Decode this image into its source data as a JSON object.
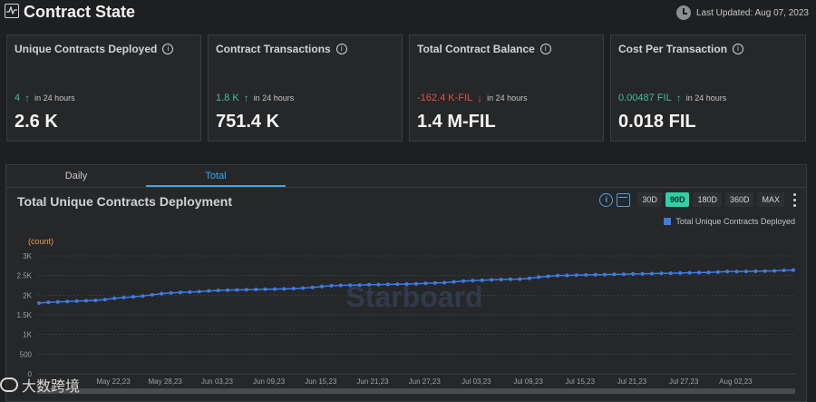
{
  "header": {
    "title": "Contract State",
    "last_updated": "Last Updated: Aug 07, 2023"
  },
  "cards": [
    {
      "label": "Unique Contracts Deployed",
      "delta": "4",
      "direction": "up",
      "note": "in 24 hours",
      "value": "2.6 K"
    },
    {
      "label": "Contract Transactions",
      "delta": "1.8 K",
      "direction": "up",
      "note": "in 24 hours",
      "value": "751.4 K"
    },
    {
      "label": "Total Contract Balance",
      "delta": "-162.4 K-FIL",
      "direction": "down",
      "note": "in 24 hours",
      "value": "1.4 M-FIL"
    },
    {
      "label": "Cost Per Transaction",
      "delta": "0.00487 FIL",
      "direction": "up",
      "note": "in 24 hours",
      "value": "0.018 FIL"
    }
  ],
  "tabs": [
    {
      "label": "Daily",
      "active": false
    },
    {
      "label": "Total",
      "active": true
    }
  ],
  "chart_panel": {
    "title": "Total Unique Contracts Deployment",
    "ranges": [
      {
        "label": "30D",
        "active": false
      },
      {
        "label": "90D",
        "active": true
      },
      {
        "label": "180D",
        "active": false
      },
      {
        "label": "360D",
        "active": false
      },
      {
        "label": "MAX",
        "active": false
      }
    ],
    "legend": "Total Unique Contracts Deployed"
  },
  "watermark": {
    "chart_text": "Starboard",
    "footer_text": "大数跨境"
  },
  "chart_data": {
    "type": "line",
    "ylabel": "(count)",
    "ylim": [
      0,
      3000
    ],
    "yticks": [
      "0",
      "500",
      "1K",
      "1.5K",
      "2K",
      "2.5K",
      "3K"
    ],
    "xticks": [
      "May 22,23",
      "May 28,23",
      "Jun 03,23",
      "Jun 09,23",
      "Jun 15,23",
      "Jun 21,23",
      "Jun 27,23",
      "Jul 03,23",
      "Jul 09,23",
      "Jul 15,23",
      "Jul 21,23",
      "Jul 27,23",
      "Aug 02,23"
    ],
    "series": [
      {
        "name": "Total Unique Contracts Deployed",
        "color": "#3d7be8",
        "values": [
          1800,
          1820,
          1830,
          1840,
          1850,
          1860,
          1870,
          1890,
          1920,
          1940,
          1960,
          1980,
          2010,
          2040,
          2060,
          2070,
          2080,
          2090,
          2110,
          2120,
          2130,
          2135,
          2140,
          2145,
          2150,
          2155,
          2160,
          2170,
          2180,
          2200,
          2220,
          2240,
          2250,
          2255,
          2260,
          2265,
          2270,
          2275,
          2280,
          2285,
          2290,
          2300,
          2310,
          2320,
          2340,
          2360,
          2370,
          2380,
          2390,
          2400,
          2405,
          2410,
          2430,
          2460,
          2480,
          2500,
          2505,
          2510,
          2515,
          2520,
          2525,
          2530,
          2535,
          2540,
          2545,
          2550,
          2555,
          2560,
          2565,
          2570,
          2575,
          2580,
          2590,
          2600,
          2600,
          2605,
          2610,
          2615,
          2620,
          2630,
          2640
        ]
      }
    ],
    "grid": true,
    "legend": "top-right"
  }
}
